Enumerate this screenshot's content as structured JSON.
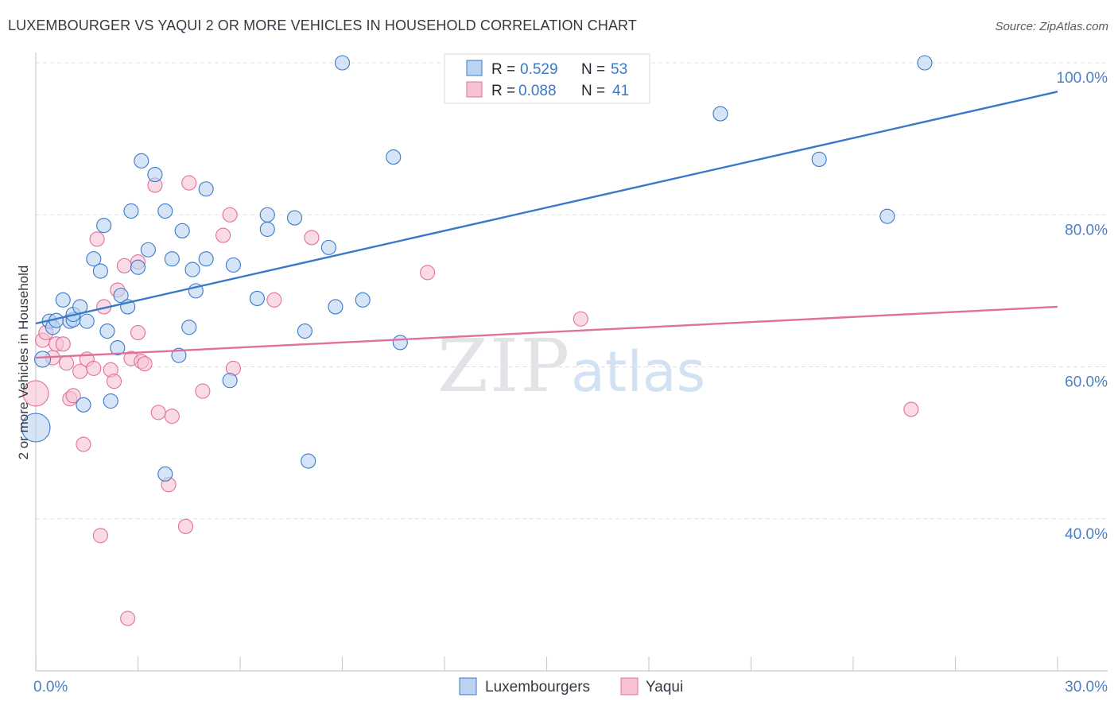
{
  "title": "LUXEMBOURGER VS YAQUI 2 OR MORE VEHICLES IN HOUSEHOLD CORRELATION CHART",
  "source": "Source: ZipAtlas.com",
  "watermark": {
    "zip": "ZIP",
    "atlas": "atlas"
  },
  "legend_stats": [
    {
      "r_label": "R =",
      "r_value": "0.529",
      "n_label": "N =",
      "n_value": "53"
    },
    {
      "r_label": "R =",
      "r_value": "0.088",
      "n_label": "N =",
      "n_value": "41"
    }
  ],
  "colors": {
    "blue": "#3a78c8",
    "blue_fill": "#b9d3f1",
    "pink": "#e0709a",
    "pink_fill": "#f7c3d4",
    "grid": "#dde1e6",
    "axis": "#c6cbd1",
    "tick_text": "#4a7fc7"
  },
  "chart_data": {
    "type": "scatter",
    "xlabel": "",
    "ylabel": "2 or more Vehicles in Household",
    "xlim": [
      0,
      30
    ],
    "ylim": [
      20,
      100
    ],
    "x_tick_labels": [
      {
        "value": 0,
        "label": "0.0%"
      },
      {
        "value": 30,
        "label": "30.0%"
      }
    ],
    "y_tick_labels": [
      {
        "value": 40,
        "label": "40.0%"
      },
      {
        "value": 60,
        "label": "60.0%"
      },
      {
        "value": 80,
        "label": "80.0%"
      },
      {
        "value": 100,
        "label": "100.0%"
      }
    ],
    "grid": true,
    "legend_position": "bottom-center",
    "series": [
      {
        "name": "Luxembourgers",
        "r": 0.529,
        "n": 53,
        "trend": {
          "x": [
            0,
            30
          ],
          "y": [
            65.7,
            96.2
          ]
        },
        "points": [
          [
            0.2,
            61.0,
            10
          ],
          [
            0.0,
            52.0,
            18
          ],
          [
            0.4,
            66.0,
            9
          ],
          [
            0.5,
            65.2,
            9
          ],
          [
            0.6,
            66.1,
            9
          ],
          [
            0.8,
            68.8,
            9
          ],
          [
            1.0,
            66.0,
            9
          ],
          [
            1.1,
            66.2,
            9
          ],
          [
            1.1,
            66.9,
            9
          ],
          [
            1.3,
            67.9,
            9
          ],
          [
            1.4,
            55.0,
            9
          ],
          [
            1.5,
            66.0,
            9
          ],
          [
            1.7,
            74.2,
            9
          ],
          [
            1.9,
            72.6,
            9
          ],
          [
            2.0,
            78.6,
            9
          ],
          [
            2.1,
            64.7,
            9
          ],
          [
            2.2,
            55.5,
            9
          ],
          [
            2.4,
            62.5,
            9
          ],
          [
            2.5,
            69.4,
            9
          ],
          [
            2.7,
            67.9,
            9
          ],
          [
            2.8,
            80.5,
            9
          ],
          [
            3.0,
            73.1,
            9
          ],
          [
            3.1,
            87.1,
            9
          ],
          [
            3.3,
            75.4,
            9
          ],
          [
            3.5,
            85.3,
            9
          ],
          [
            3.8,
            80.5,
            9
          ],
          [
            3.8,
            45.9,
            9
          ],
          [
            4.0,
            74.2,
            9
          ],
          [
            4.2,
            61.5,
            9
          ],
          [
            4.3,
            77.9,
            9
          ],
          [
            4.5,
            65.2,
            9
          ],
          [
            4.6,
            72.8,
            9
          ],
          [
            4.7,
            70.0,
            9
          ],
          [
            5.0,
            83.4,
            9
          ],
          [
            5.0,
            74.2,
            9
          ],
          [
            5.7,
            58.2,
            9
          ],
          [
            5.8,
            73.4,
            9
          ],
          [
            6.5,
            69.0,
            9
          ],
          [
            6.8,
            80.0,
            9
          ],
          [
            6.8,
            78.1,
            9
          ],
          [
            7.6,
            79.6,
            9
          ],
          [
            7.9,
            64.7,
            9
          ],
          [
            8.0,
            47.6,
            9
          ],
          [
            8.6,
            75.7,
            9
          ],
          [
            8.8,
            67.9,
            9
          ],
          [
            9.0,
            100.0,
            9
          ],
          [
            9.6,
            68.8,
            9
          ],
          [
            10.5,
            87.6,
            9
          ],
          [
            10.7,
            63.2,
            9
          ],
          [
            20.1,
            93.3,
            9
          ],
          [
            23.0,
            87.3,
            9
          ],
          [
            25.0,
            79.8,
            9
          ],
          [
            26.1,
            100.0,
            9
          ]
        ]
      },
      {
        "name": "Yaqui",
        "r": 0.088,
        "n": 41,
        "trend": {
          "x": [
            0,
            30
          ],
          "y": [
            61.2,
            67.9
          ]
        },
        "points": [
          [
            0.0,
            56.5,
            16
          ],
          [
            0.2,
            63.5,
            9
          ],
          [
            0.3,
            64.5,
            9
          ],
          [
            0.5,
            61.2,
            9
          ],
          [
            0.6,
            63.0,
            9
          ],
          [
            0.8,
            63.0,
            9
          ],
          [
            0.9,
            60.5,
            9
          ],
          [
            1.0,
            55.8,
            9
          ],
          [
            1.1,
            56.2,
            9
          ],
          [
            1.3,
            59.4,
            9
          ],
          [
            1.4,
            49.8,
            9
          ],
          [
            1.5,
            61.0,
            9
          ],
          [
            1.7,
            59.8,
            9
          ],
          [
            1.8,
            76.8,
            9
          ],
          [
            1.9,
            37.8,
            9
          ],
          [
            2.0,
            67.9,
            9
          ],
          [
            2.2,
            59.6,
            9
          ],
          [
            2.3,
            58.1,
            9
          ],
          [
            2.4,
            70.1,
            9
          ],
          [
            2.6,
            73.3,
            9
          ],
          [
            2.7,
            26.9,
            9
          ],
          [
            2.8,
            61.1,
            9
          ],
          [
            3.0,
            64.5,
            9
          ],
          [
            3.0,
            73.8,
            9
          ],
          [
            3.1,
            60.7,
            9
          ],
          [
            3.2,
            60.4,
            9
          ],
          [
            3.5,
            83.9,
            9
          ],
          [
            3.6,
            54.0,
            9
          ],
          [
            3.9,
            44.5,
            9
          ],
          [
            4.0,
            53.5,
            9
          ],
          [
            4.4,
            39.0,
            9
          ],
          [
            4.5,
            84.2,
            9
          ],
          [
            4.9,
            56.8,
            9
          ],
          [
            5.5,
            77.3,
            9
          ],
          [
            5.7,
            80.0,
            9
          ],
          [
            5.8,
            59.8,
            9
          ],
          [
            7.0,
            68.8,
            9
          ],
          [
            8.1,
            77.0,
            9
          ],
          [
            11.5,
            72.4,
            9
          ],
          [
            16.0,
            66.3,
            9
          ],
          [
            25.7,
            54.4,
            9
          ]
        ]
      }
    ]
  }
}
